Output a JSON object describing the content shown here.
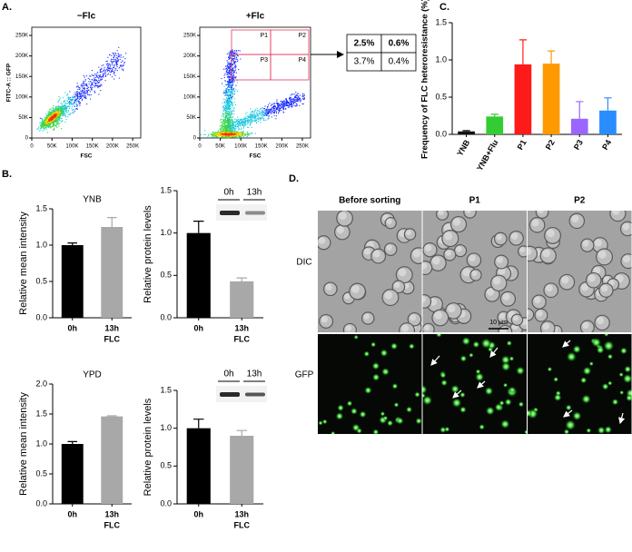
{
  "figure_labels": {
    "a": "A.",
    "b": "B.",
    "c": "C.",
    "d": "D."
  },
  "flow_cytometry": {
    "xlabel": "FSC",
    "ylabel": "FITC-A :: GFP",
    "plots": [
      {
        "title": "−Flc"
      },
      {
        "title": "+Flc",
        "gates": [
          "P1",
          "P2",
          "P3",
          "P4"
        ]
      }
    ],
    "xlim": [
      0,
      270000
    ],
    "ylim": [
      0,
      270000
    ],
    "ticks": [
      0,
      {
        "value": 50000,
        "label": "50K"
      },
      {
        "value": 100000,
        "label": "100K"
      },
      {
        "value": 150000,
        "label": "150K"
      },
      {
        "value": 200000,
        "label": "200K"
      },
      {
        "value": 250000,
        "label": "250K"
      }
    ]
  },
  "gate_table": {
    "rows": [
      [
        "2.5%",
        "0.6%"
      ],
      [
        "3.7%",
        "0.4%"
      ]
    ],
    "row_colors": [
      "#d42020",
      "#222222"
    ]
  },
  "chart_data": [
    {
      "type": "bar",
      "ylabel": "Frequency of FLC heteroresistance (%)",
      "categories": [
        "YNB",
        "YNB+Flu",
        "P1",
        "P2",
        "P3",
        "P4"
      ],
      "values": [
        0.04,
        0.24,
        0.94,
        0.95,
        0.21,
        0.32
      ],
      "errors": [
        0.01,
        0.03,
        0.33,
        0.17,
        0.23,
        0.17
      ],
      "colors": [
        "#111111",
        "#33cc33",
        "#ff1a1a",
        "#ff9900",
        "#9a66ff",
        "#2a8cff"
      ],
      "ylim": [
        0,
        1.5
      ],
      "yticks": [
        {
          "value": 0,
          "label": "0.0"
        },
        0.5,
        {
          "value": 1,
          "label": "1.0"
        },
        1.5
      ]
    },
    {
      "type": "bar",
      "title": "YNB",
      "ylabel": "Relative mean intensity",
      "categories": [
        "0h",
        "13h"
      ],
      "treatment_label": "FLC",
      "values": [
        1.0,
        1.25
      ],
      "errors": [
        0.03,
        0.13
      ],
      "colors": [
        "#000000",
        "#a8a8a8"
      ],
      "ylim": [
        0,
        1.5
      ],
      "yticks": [
        {
          "value": 0,
          "label": "0.0"
        },
        0.5,
        {
          "value": 1,
          "label": "1.0"
        },
        1.5
      ]
    },
    {
      "type": "bar",
      "ylabel": "Relative protein levels",
      "categories": [
        "0h",
        "13h"
      ],
      "treatment_label": "FLC",
      "blot_lanes": [
        "0h",
        "13h"
      ],
      "values": [
        1.0,
        0.43
      ],
      "errors": [
        0.14,
        0.04
      ],
      "colors": [
        "#000000",
        "#a8a8a8"
      ],
      "ylim": [
        0,
        1.5
      ],
      "yticks": [
        {
          "value": 0,
          "label": "0.0"
        },
        0.5,
        {
          "value": 1,
          "label": "1.0"
        },
        1.5
      ]
    },
    {
      "type": "bar",
      "title": "YPD",
      "ylabel": "Relative mean intensity",
      "categories": [
        "0h",
        "13h"
      ],
      "treatment_label": "FLC",
      "values": [
        1.0,
        1.46
      ],
      "errors": [
        0.04,
        0.01
      ],
      "colors": [
        "#000000",
        "#a8a8a8"
      ],
      "ylim": [
        0,
        2
      ],
      "yticks": [
        {
          "value": 0,
          "label": "0.0"
        },
        0.5,
        {
          "value": 1,
          "label": "1.0"
        },
        1.5,
        {
          "value": 2,
          "label": "2.0"
        }
      ]
    },
    {
      "type": "bar",
      "ylabel": "Relative protein levels",
      "categories": [
        "0h",
        "13h"
      ],
      "treatment_label": "FLC",
      "blot_lanes": [
        "0h",
        "13h"
      ],
      "values": [
        1.0,
        0.9
      ],
      "errors": [
        0.12,
        0.07
      ],
      "colors": [
        "#000000",
        "#a8a8a8"
      ],
      "ylim": [
        0,
        1.5
      ],
      "yticks": [
        {
          "value": 0,
          "label": "0.0"
        },
        0.5,
        {
          "value": 1,
          "label": "1.0"
        },
        1.5
      ]
    }
  ],
  "microscopy": {
    "columns": [
      "Before sorting",
      "P1",
      "P2"
    ],
    "rows": [
      "DIC",
      "GFP"
    ],
    "scale_bar": "10 μm"
  }
}
